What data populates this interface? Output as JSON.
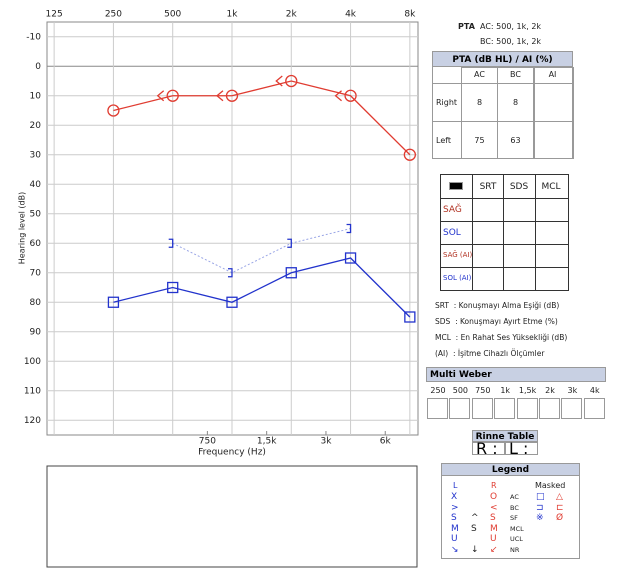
{
  "chart_data": {
    "type": "audiogram",
    "xlabel": "Frequency (Hz)",
    "ylabel": "Hearing level (dB)",
    "xscale": "log",
    "xlim": [
      115,
      8800
    ],
    "ylim": [
      -15,
      125
    ],
    "inverted_y": true,
    "grid": true,
    "xticks": [
      125,
      250,
      500,
      {
        "value": 1000,
        "label": "1k"
      },
      {
        "value": 2000,
        "label": "2k"
      },
      {
        "value": 4000,
        "label": "4k"
      },
      {
        "value": 8000,
        "label": "8k"
      }
    ],
    "xticks_minor": [
      750,
      {
        "value": 1500,
        "label": "1,5k"
      },
      {
        "value": 3000,
        "label": "3k"
      },
      {
        "value": 6000,
        "label": "6k"
      }
    ],
    "yticks": [
      -10,
      0,
      10,
      20,
      30,
      40,
      50,
      60,
      70,
      80,
      90,
      100,
      110,
      120
    ],
    "series": [
      {
        "color": "#e03c31",
        "marker": "circle",
        "line": "solid",
        "x": [
          250,
          500,
          1000,
          2000,
          4000,
          8000
        ],
        "values": [
          15,
          10,
          10,
          5,
          10,
          30
        ]
      },
      {
        "color": "#e03c31",
        "marker": "<",
        "line": "none",
        "x": [
          500,
          1000,
          2000,
          4000
        ],
        "values": [
          10,
          10,
          5,
          10
        ]
      },
      {
        "color": "#2233cc",
        "marker": "square",
        "line": "solid",
        "x": [
          250,
          500,
          1000,
          2000,
          4000,
          8000
        ],
        "values": [
          80,
          75,
          80,
          70,
          65,
          85
        ]
      },
      {
        "color": "#2233cc",
        "marker": "]",
        "line": "dashed",
        "line_color": "#9aa6e6",
        "x": [
          500,
          1000,
          2000,
          4000
        ],
        "values": [
          60,
          70,
          60,
          55
        ]
      }
    ]
  },
  "pta_info": {
    "title": "PTA",
    "ac": "AC: 500, 1k, 2k",
    "bc": "BC: 500, 1k, 2k"
  },
  "pta_table": {
    "title": "PTA (dB HL) / AI (%)",
    "columns": [
      "AC",
      "BC",
      "AI"
    ],
    "rows": [
      {
        "label": "Right",
        "values": [
          8,
          8
        ]
      },
      {
        "label": "Left",
        "values": [
          75,
          63
        ]
      }
    ]
  },
  "speech_table": {
    "columns": [
      "SRT",
      "SDS",
      "MCL"
    ],
    "rows": [
      "SAĞ",
      "SOL",
      "SAĞ (AI)",
      "SOL (AI)"
    ]
  },
  "abbreviations": [
    "SRT  : Konuşmayı Alma Eşiği (dB)",
    "SDS  : Konuşmayı Ayırt Etme (%)",
    "MCL  : En Rahat Ses Yüksekliği (dB)",
    "(AI)  : İşitme Cihazlı Ölçümler"
  ],
  "multi_weber": {
    "title": "Multi Weber",
    "columns": [
      "250",
      "500",
      "750",
      "1k",
      "1,5k",
      "2k",
      "3k",
      "4k"
    ]
  },
  "rinne": {
    "title": "Rinne Table",
    "cells": [
      "R :",
      "L :"
    ]
  },
  "legend": {
    "title": "Legend",
    "left": "L",
    "right": "R",
    "masked": "Masked",
    "rows": [
      {
        "l": "X",
        "m": "",
        "r": "O",
        "name": "AC",
        "ml": "□",
        "mr": "△"
      },
      {
        "l": ">",
        "m": "",
        "r": "<",
        "name": "BC",
        "ml": "⊐",
        "mr": "⊏"
      },
      {
        "l": "S",
        "m": "^",
        "r": "S",
        "name": "SF",
        "ml": "※",
        "mr": "Ø"
      },
      {
        "l": "M",
        "m": "S",
        "r": "M",
        "name": "MCL"
      },
      {
        "l": "U",
        "m": "",
        "r": "U",
        "name": "UCL"
      },
      {
        "l": "↘",
        "m": "↓",
        "r": "↙",
        "name": "NR"
      }
    ]
  }
}
